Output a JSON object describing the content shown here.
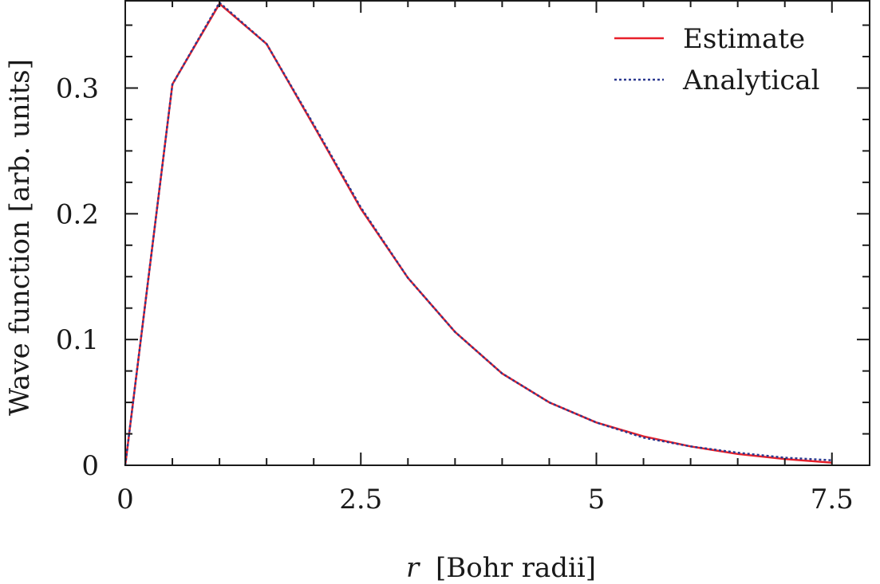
{
  "chart_data": {
    "type": "line",
    "title": "",
    "xlabel_var": "r",
    "xlabel_unit": "[Bohr radii]",
    "ylabel": "Wave function [arb. units]",
    "xlim": [
      0,
      7.9
    ],
    "ylim": [
      0,
      0.37
    ],
    "xticks": [
      0,
      2.5,
      5,
      7.5
    ],
    "xtick_labels": [
      "0",
      "2.5",
      "5",
      "7.5"
    ],
    "yticks": [
      0,
      0.1,
      0.2,
      0.3
    ],
    "ytick_labels": [
      "0",
      "0.1",
      "0.2",
      "0.3"
    ],
    "legend_position": "top-right",
    "grid": false,
    "series": [
      {
        "name": "Estimate",
        "color": "#e8202a",
        "style": "solid",
        "x": [
          0,
          0.5,
          1,
          1.5,
          2,
          2.5,
          3,
          3.5,
          4,
          4.5,
          5,
          5.5,
          6,
          6.5,
          7,
          7.5
        ],
        "y": [
          0,
          0.303,
          0.367,
          0.335,
          0.27,
          0.204,
          0.149,
          0.106,
          0.073,
          0.05,
          0.034,
          0.023,
          0.015,
          0.009,
          0.005,
          0.002
        ]
      },
      {
        "name": "Analytical",
        "color": "#2b3990",
        "style": "dotted",
        "x": [
          0,
          0.5,
          1,
          1.5,
          2,
          2.5,
          3,
          3.5,
          4,
          4.5,
          5,
          5.5,
          6,
          6.5,
          7,
          7.5
        ],
        "y": [
          0,
          0.303,
          0.368,
          0.335,
          0.271,
          0.205,
          0.149,
          0.106,
          0.073,
          0.05,
          0.034,
          0.022,
          0.015,
          0.01,
          0.006,
          0.004
        ]
      }
    ]
  }
}
